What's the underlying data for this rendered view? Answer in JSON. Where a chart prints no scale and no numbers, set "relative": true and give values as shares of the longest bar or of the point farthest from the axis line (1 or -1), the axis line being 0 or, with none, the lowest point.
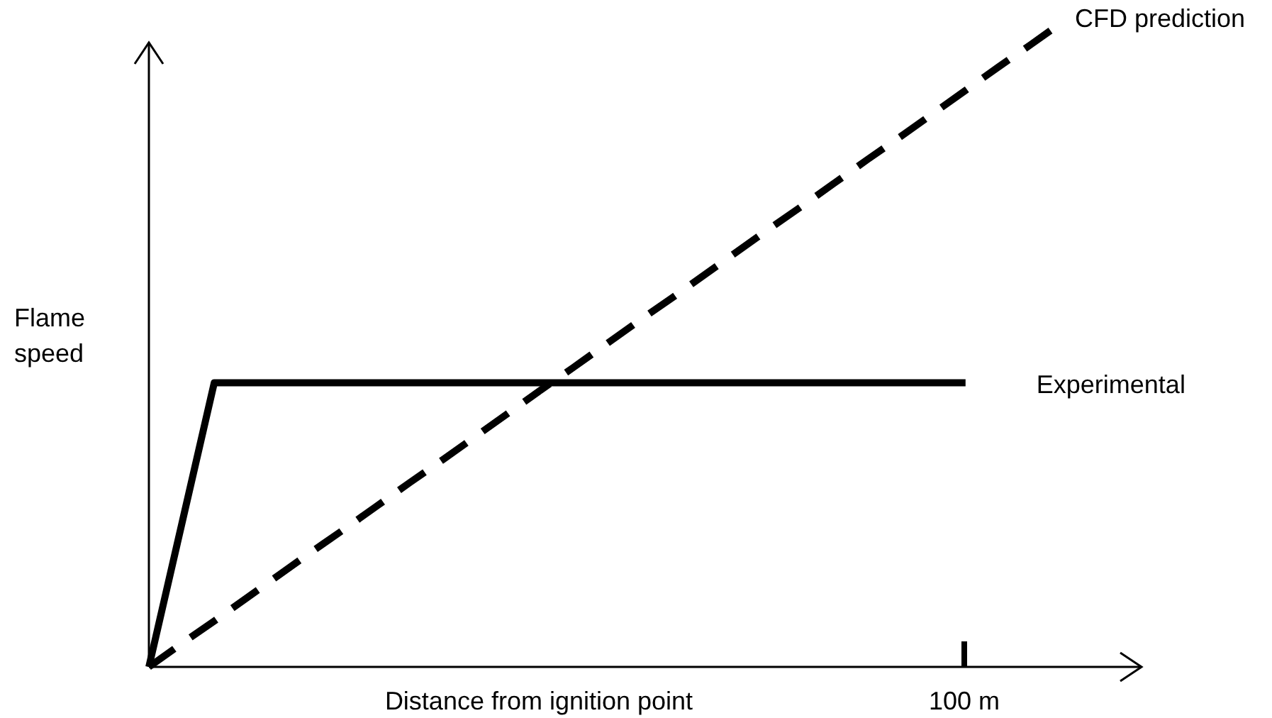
{
  "chart_data": {
    "type": "line",
    "relative": true,
    "xlabel": "Distance from ignition point",
    "ylabel": "Flame speed",
    "grid": false,
    "legend": false,
    "annotations": [
      "100 m"
    ],
    "categories": [
      null,
      null,
      null,
      null,
      null,
      null,
      null,
      null,
      null,
      null,
      null,
      null,
      null,
      null,
      null,
      null,
      null,
      null,
      null,
      null,
      null,
      null,
      null,
      null,
      null,
      null,
      null,
      null,
      null
    ],
    "series": [
      {
        "name": "Experimental",
        "color": "#000000",
        "line_style": "solid",
        "values": [
          0,
          0.22,
          0.44,
          0.44,
          0.44,
          0.44,
          0.44,
          0.44,
          0.44,
          0.44,
          0.44,
          0.44,
          0.44,
          0.44,
          0.44,
          0.44,
          0.44,
          0.44,
          0.44,
          0.44,
          0.44,
          0.44,
          0.44,
          0.44,
          0.44,
          0.44,
          null,
          null,
          null
        ]
      },
      {
        "name": "CFD prediction",
        "color": "#000000",
        "line_style": "dashed",
        "values": [
          0,
          0.036,
          0.071,
          0.107,
          0.143,
          0.179,
          0.214,
          0.25,
          0.286,
          0.321,
          0.357,
          0.393,
          0.429,
          0.464,
          0.5,
          0.536,
          0.571,
          0.607,
          0.643,
          0.679,
          0.714,
          0.75,
          0.786,
          0.821,
          0.857,
          0.893,
          0.929,
          0.964,
          1
        ]
      }
    ]
  }
}
